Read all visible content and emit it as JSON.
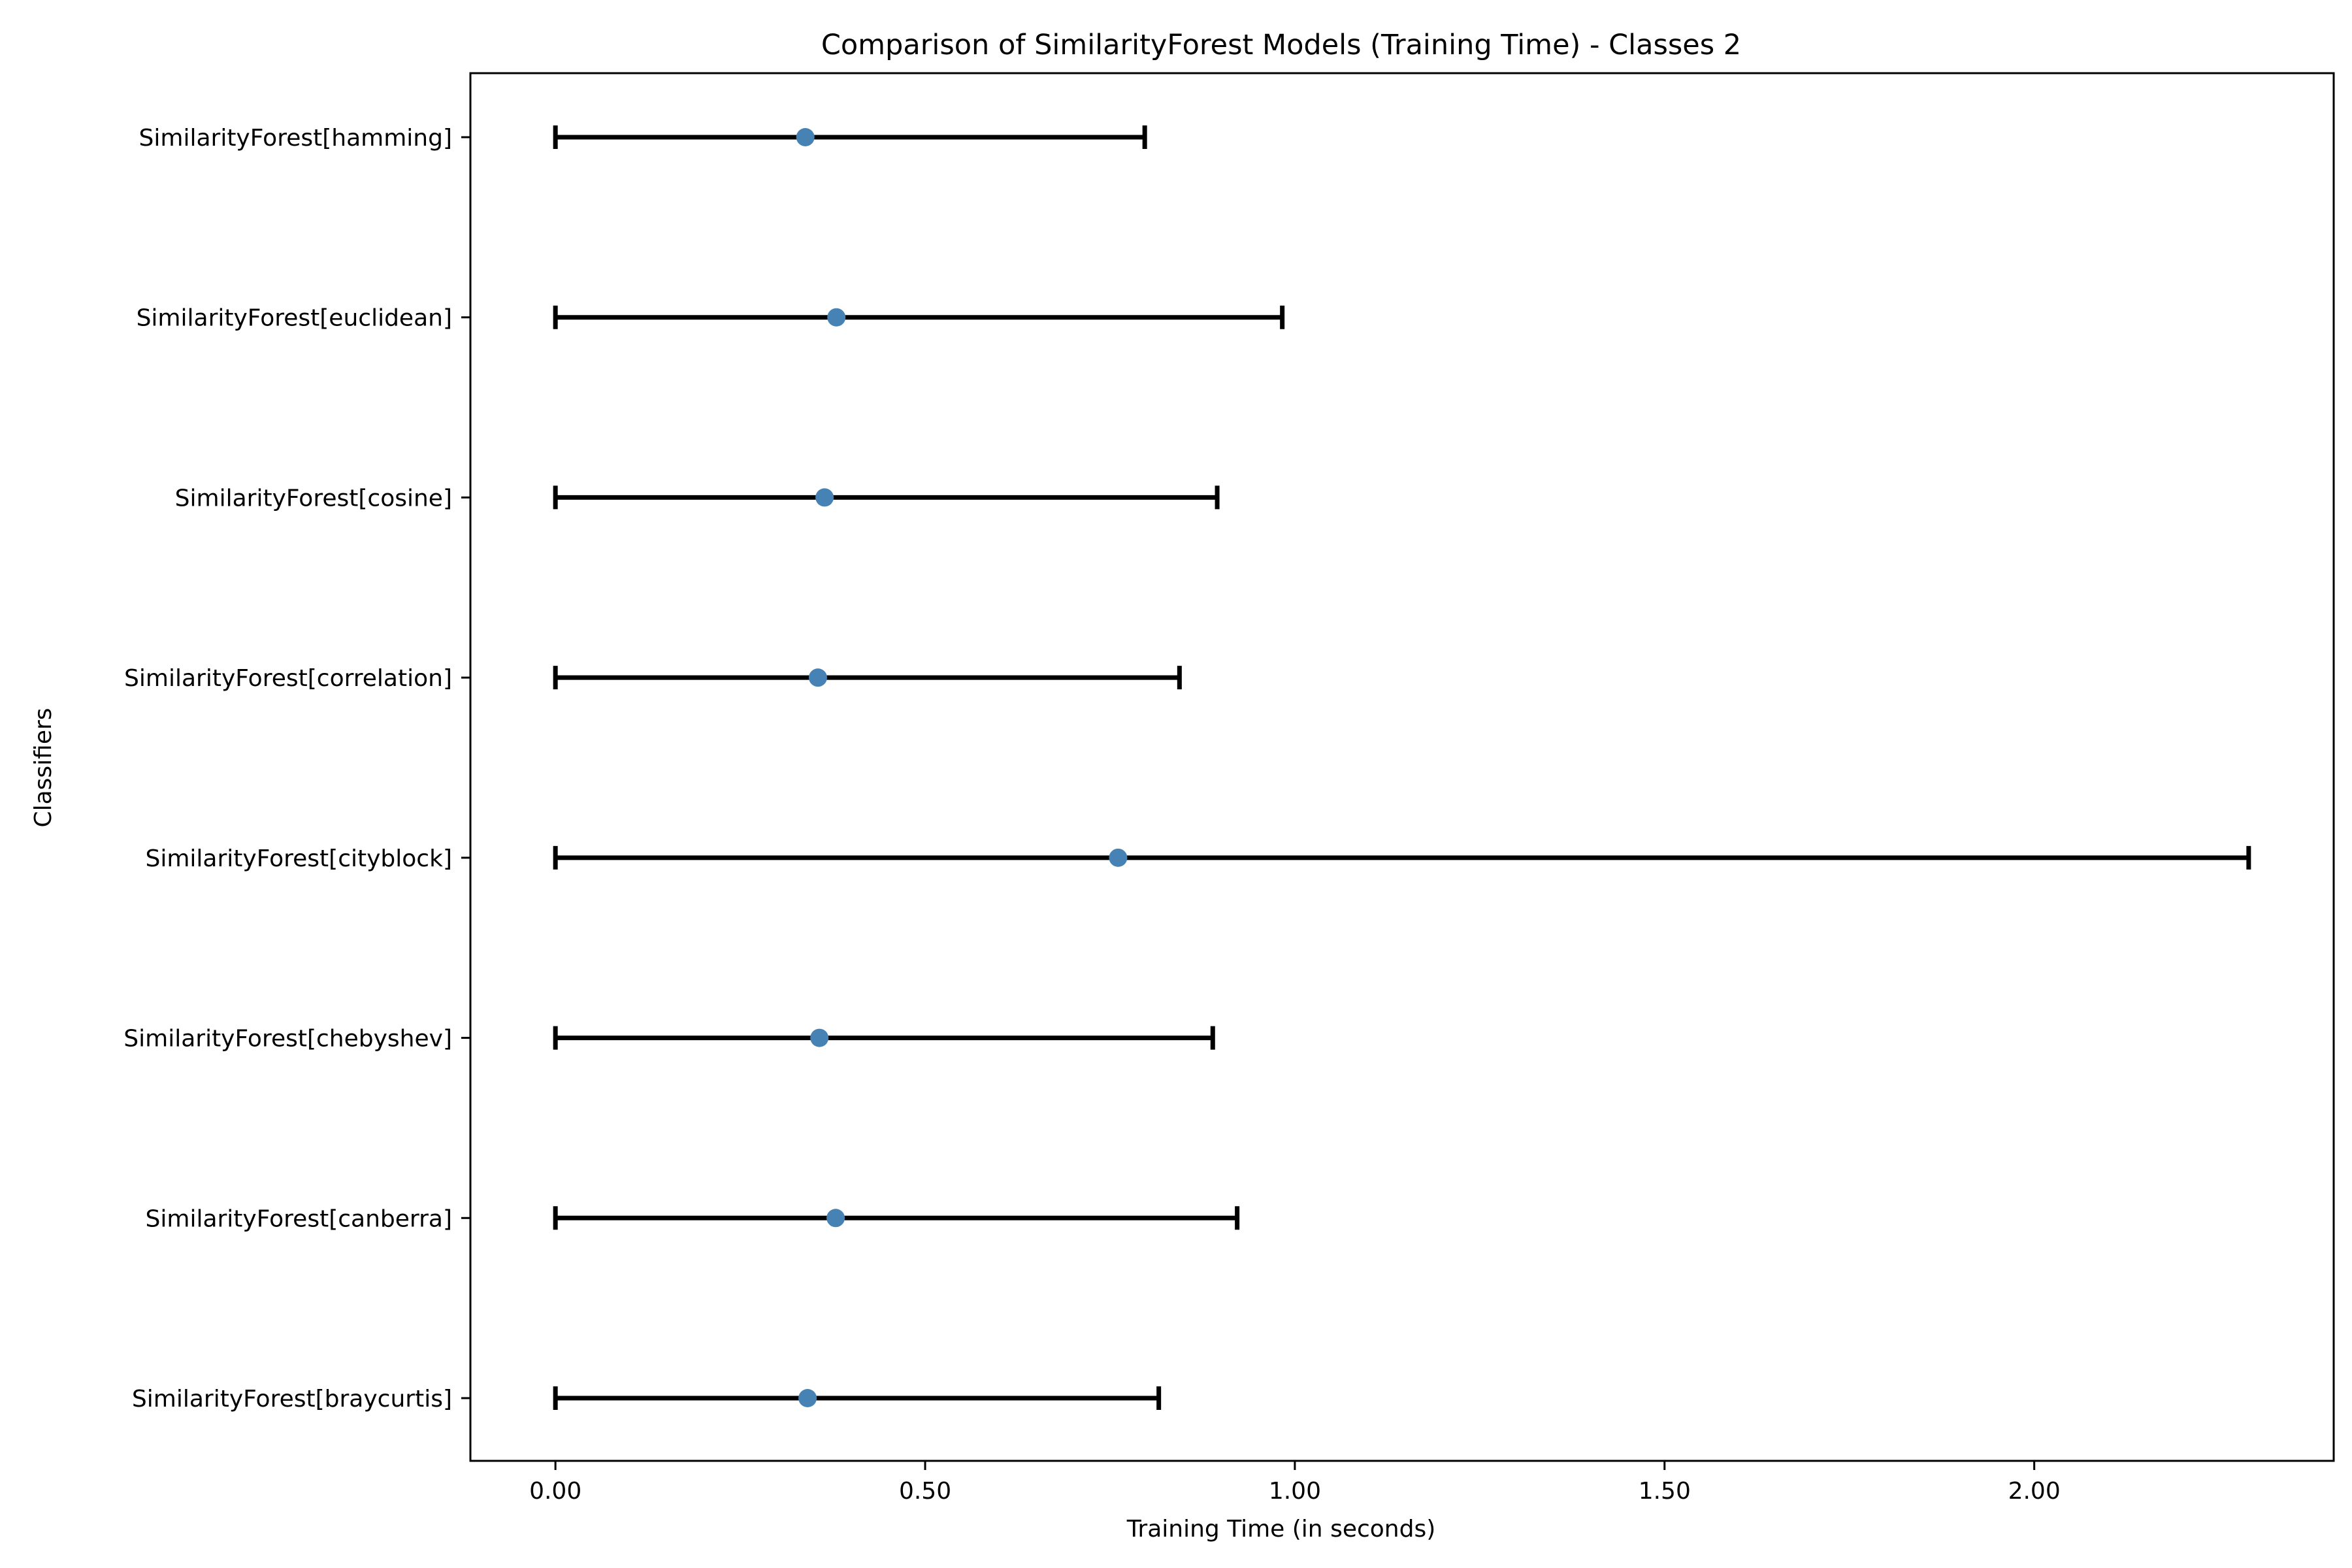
{
  "chart_data": {
    "type": "scatter",
    "title": "Comparison of SimilarityForest Models (Training Time) - Classes 2",
    "xlabel": "Training Time (in seconds)",
    "ylabel": "Classifiers",
    "xlim": [
      -0.115,
      2.405
    ],
    "x_ticks": [
      0.0,
      0.5,
      1.0,
      1.5,
      2.0
    ],
    "x_tick_labels": [
      "0.00",
      "0.50",
      "1.00",
      "1.50",
      "2.00"
    ],
    "grid": false,
    "legend": "none",
    "colors": {
      "marker": "#4682b4",
      "errorbar": "#000000",
      "axes": "#000000"
    },
    "categories": [
      "SimilarityForest[hamming]",
      "SimilarityForest[euclidean]",
      "SimilarityForest[cosine]",
      "SimilarityForest[correlation]",
      "SimilarityForest[cityblock]",
      "SimilarityForest[chebyshev]",
      "SimilarityForest[canberra]",
      "SimilarityForest[braycurtis]"
    ],
    "values": [
      0.338,
      0.38,
      0.364,
      0.355,
      0.761,
      0.357,
      0.379,
      0.341
    ],
    "error_low": [
      0.0,
      0.0,
      0.0,
      0.0,
      0.0,
      0.0,
      0.0,
      0.0
    ],
    "error_high": [
      0.797,
      0.983,
      0.895,
      0.844,
      2.29,
      0.889,
      0.922,
      0.816
    ]
  }
}
